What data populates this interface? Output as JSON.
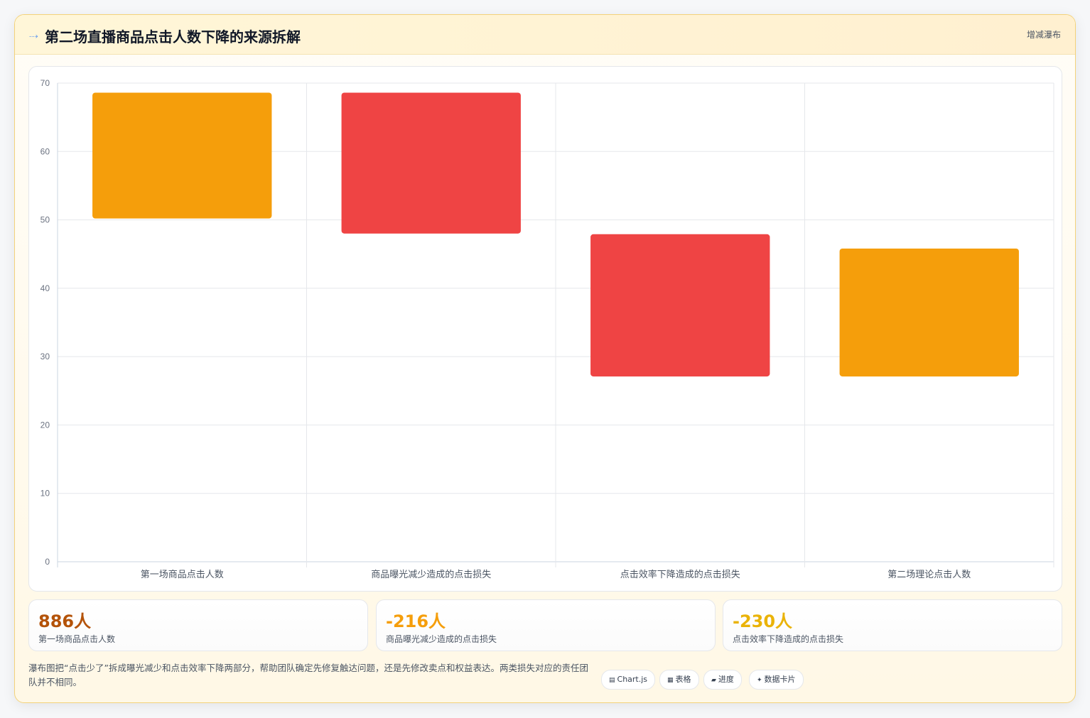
{
  "header": {
    "icon": "trend-down-icon",
    "title": "第二场直播商品点击人数下降的来源拆解",
    "tag": "增减瀑布"
  },
  "chart_data": {
    "type": "bar",
    "subtype": "floating-waterfall",
    "title": "",
    "xlabel": "",
    "ylabel": "",
    "ylim": [
      0,
      70
    ],
    "yticks": [
      0,
      10,
      20,
      30,
      40,
      50,
      60,
      70
    ],
    "grid": true,
    "categories": [
      "第一场商品点击人数",
      "商品曝光减少造成的点击损失",
      "点击效率下降造成的点击损失",
      "第二场理论点击人数"
    ],
    "ranges": [
      [
        50.2,
        68.6
      ],
      [
        48.0,
        68.6
      ],
      [
        27.1,
        47.9
      ],
      [
        27.1,
        45.8
      ]
    ],
    "colors": [
      "#f59e0b",
      "#ef4444",
      "#ef4444",
      "#f59e0b"
    ]
  },
  "stats": [
    {
      "value": "886人",
      "label": "第一场商品点击人数",
      "color": "#b45309"
    },
    {
      "value": "-216人",
      "label": "商品曝光减少造成的点击损失",
      "color": "#f59e0b"
    },
    {
      "value": "-230人",
      "label": "点击效率下降造成的点击损失",
      "color": "#eab308"
    }
  ],
  "note": "瀑布图把“点击少了”拆成曝光减少和点击效率下降两部分，帮助团队确定先修复触达问题，还是先修改卖点和权益表达。两类损失对应的责任团队并不相同。",
  "chips": [
    {
      "icon": "chart-icon",
      "glyph": "▤",
      "label": "Chart.js"
    },
    {
      "icon": "table-icon",
      "glyph": "▦",
      "label": "表格"
    },
    {
      "icon": "progress-icon",
      "glyph": "▰",
      "label": "进度"
    },
    {
      "icon": "sparkle-icon",
      "glyph": "✦",
      "label": "数据卡片"
    }
  ]
}
